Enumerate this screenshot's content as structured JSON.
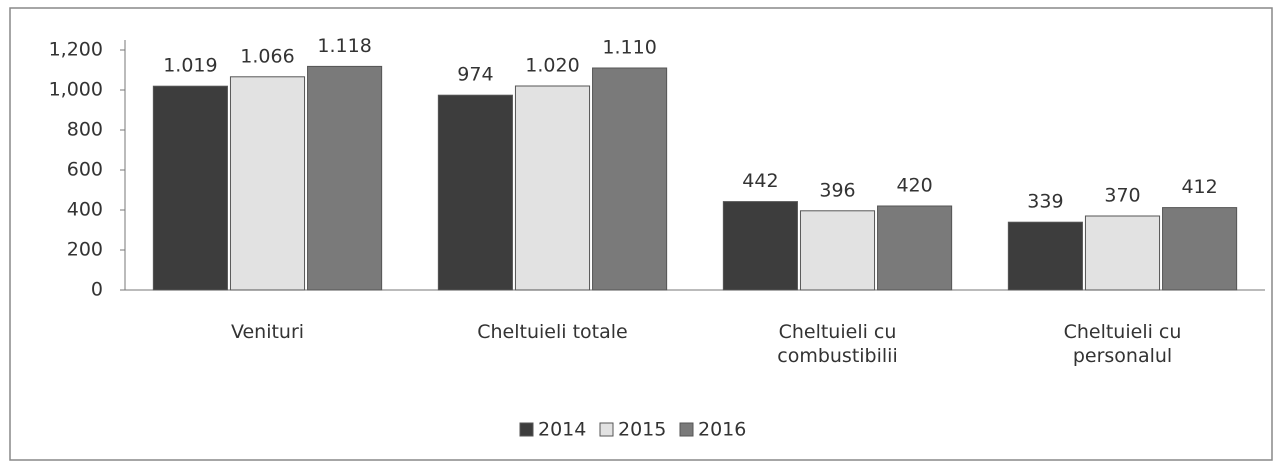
{
  "chart_data": {
    "type": "bar",
    "categories": [
      "Venituri",
      "Cheltuieli totale",
      "Cheltuieli cu combustibilii",
      "Cheltuieli cu personalul"
    ],
    "series": [
      {
        "name": "2014",
        "color": "#3d3d3d",
        "values": [
          1019,
          974,
          442,
          339
        ],
        "value_labels": [
          "1.019",
          "974",
          "442",
          "339"
        ]
      },
      {
        "name": "2015",
        "color": "#e2e2e2",
        "values": [
          1066,
          1020,
          396,
          370
        ],
        "value_labels": [
          "1.066",
          "1.020",
          "396",
          "370"
        ]
      },
      {
        "name": "2016",
        "color": "#7a7a7a",
        "values": [
          1118,
          1110,
          420,
          412
        ],
        "value_labels": [
          "1.118",
          "1.110",
          "420",
          "412"
        ]
      }
    ],
    "ylim": [
      0,
      1200
    ],
    "yticks": [
      0,
      200,
      400,
      600,
      800,
      {
        "value": 1000,
        "label": "1,000"
      },
      {
        "value": 1200,
        "label": "1,200"
      }
    ],
    "grid": false,
    "legend": "bottom"
  }
}
